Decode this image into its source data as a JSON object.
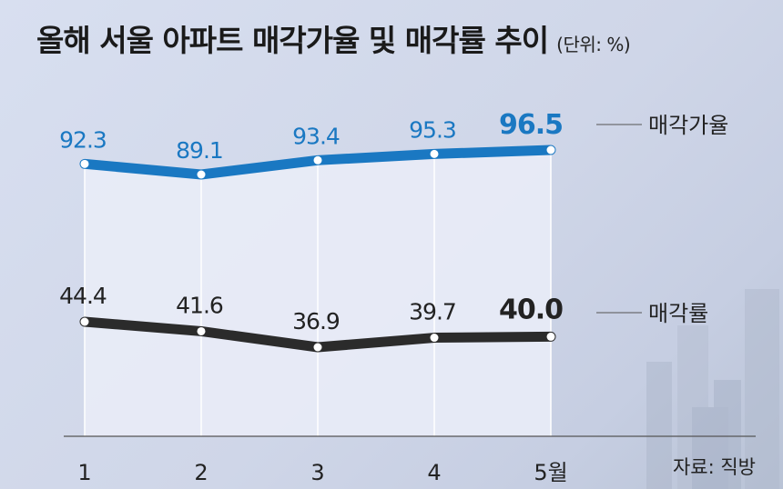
{
  "title": "올해 서울 아파트 매각가율 및 매각률 추이",
  "unit": "(단위: %)",
  "source": "자료: 직방",
  "colors": {
    "series1": "#1a78c2",
    "series2": "#2b2b2b",
    "area": "#e9ecf7"
  },
  "chart_data": {
    "type": "line",
    "title": "올해 서울 아파트 매각가율 및 매각률 추이",
    "xlabel": "",
    "ylabel": "",
    "categories": [
      "1",
      "2",
      "3",
      "4",
      "5월"
    ],
    "series": [
      {
        "name": "매각가율",
        "values": [
          92.3,
          89.1,
          93.4,
          95.3,
          96.5
        ],
        "labels": [
          "92.3",
          "89.1",
          "93.4",
          "95.3",
          "96.5"
        ]
      },
      {
        "name": "매각률",
        "values": [
          44.4,
          41.6,
          36.9,
          39.7,
          40.0
        ],
        "labels": [
          "44.4",
          "41.6",
          "36.9",
          "39.7",
          "40.0"
        ]
      }
    ],
    "grid": false,
    "legend": "right-inline"
  }
}
